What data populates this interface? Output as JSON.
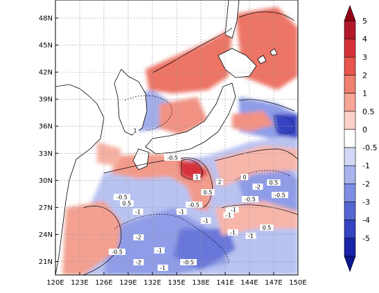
{
  "map": {
    "lon_ticks": [
      "120E",
      "123E",
      "126E",
      "129E",
      "132E",
      "135E",
      "138E",
      "141E",
      "144E",
      "147E",
      "150E"
    ],
    "lat_ticks": [
      "21N",
      "24N",
      "27N",
      "30N",
      "33N",
      "36N",
      "39N",
      "42N",
      "45N",
      "48N"
    ],
    "lon_range": [
      120,
      150
    ],
    "lat_range": [
      19.5,
      50
    ],
    "grid": true,
    "contour_labels": [
      "-0.5",
      "-1",
      "0.5",
      "1",
      "2",
      "-2",
      "0",
      "-0.5",
      "-1",
      "0.5",
      "-1",
      "2",
      "-0.5",
      "-1",
      "-2",
      "-1",
      "-0.5",
      "-1",
      "-0.5",
      "-2",
      "-1",
      "0.5",
      "-0.5",
      "0.5",
      "-1",
      "-0.5",
      "-1",
      "1"
    ]
  },
  "colorbar": {
    "levels": [
      "5",
      "4",
      "3",
      "2",
      "1",
      "0.5",
      "0",
      "-0.5",
      "-1",
      "-2",
      "-3",
      "-4",
      "-5"
    ],
    "colors": [
      "#b2182b",
      "#d6303a",
      "#e8554e",
      "#f07f70",
      "#f6a597",
      "#fad0c8",
      "#ffffff",
      "#d2d8f6",
      "#a9b4ee",
      "#7d8ee4",
      "#5667d4",
      "#3443c1",
      "#1a24a8"
    ],
    "top_arrow_color": "#8e0012",
    "bottom_arrow_color": "#0b1590"
  }
}
